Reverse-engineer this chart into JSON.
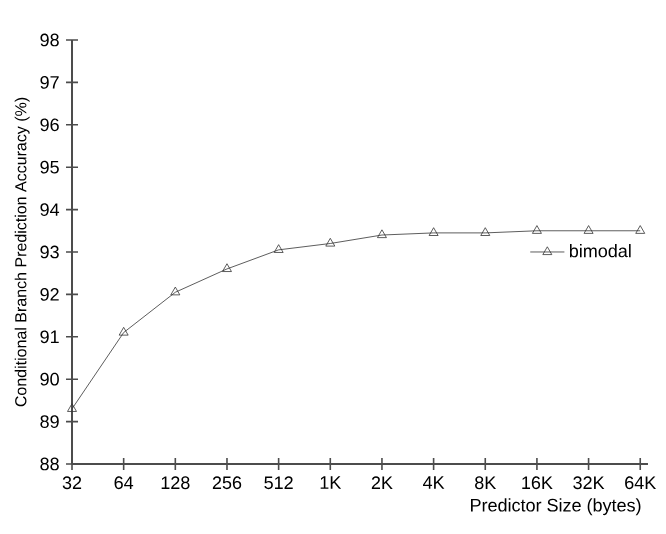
{
  "chart_data": {
    "type": "line",
    "xlabel": "Predictor Size (bytes)",
    "ylabel": "Conditional Branch Prediction Accuracy (%)",
    "categories": [
      "32",
      "64",
      "128",
      "256",
      "512",
      "1K",
      "2K",
      "4K",
      "8K",
      "16K",
      "32K",
      "64K"
    ],
    "series": [
      {
        "name": "bimodal",
        "color": "#333333",
        "values": [
          89.3,
          91.1,
          92.05,
          92.6,
          93.05,
          93.2,
          93.4,
          93.45,
          93.45,
          93.5,
          93.5,
          93.5
        ]
      }
    ],
    "ylim": [
      88,
      98
    ],
    "yticks": [
      88,
      89,
      90,
      91,
      92,
      93,
      94,
      95,
      96,
      97,
      98
    ],
    "marker": "triangle",
    "line_style": "solid",
    "legend": "right",
    "grid": false
  }
}
